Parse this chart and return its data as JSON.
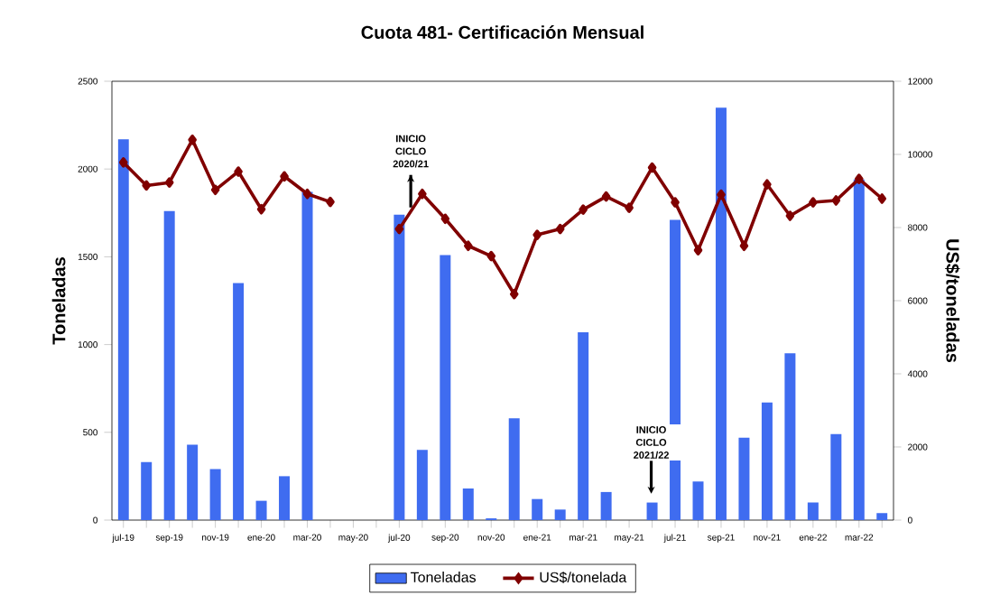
{
  "chart_data": {
    "type": "bar",
    "title": "Cuota 481-  Certificación Mensual",
    "ylabel": "Toneladas",
    "y2label": "US$/toneladas",
    "categories": [
      "jul-19",
      null,
      "sep-19",
      null,
      "nov-19",
      null,
      "ene-20",
      null,
      "mar-20",
      null,
      "may-20",
      null,
      "jul-20",
      null,
      "sep-20",
      null,
      "nov-20",
      null,
      "ene-21",
      null,
      "mar-21",
      null,
      "may-21",
      null,
      "jul-21",
      null,
      "sep-21",
      null,
      "nov-21",
      null,
      "ene-22",
      null,
      "mar-22",
      null
    ],
    "series": [
      {
        "name": "Toneladas",
        "color": "#3f6cf0",
        "values": [
          2170,
          330,
          1760,
          430,
          290,
          1350,
          110,
          250,
          1870,
          null,
          null,
          null,
          1740,
          400,
          1510,
          180,
          10,
          580,
          120,
          60,
          1070,
          160,
          null,
          100,
          1710,
          220,
          2350,
          470,
          670,
          950,
          100,
          490,
          1940,
          40
        ]
      },
      {
        "name": "US$/tonelada",
        "type": "line",
        "axis": "y2",
        "color": "#800000",
        "marker": "diamond",
        "values": [
          9780,
          9150,
          9230,
          10400,
          9030,
          9530,
          8500,
          9400,
          8920,
          8700,
          null,
          null,
          7960,
          8920,
          8240,
          7500,
          7220,
          6180,
          7800,
          7960,
          8490,
          8850,
          8540,
          9640,
          8690,
          7380,
          8900,
          7500,
          9180,
          8320,
          8690,
          8740,
          9330,
          8790
        ]
      }
    ],
    "ylim": [
      0,
      2500
    ],
    "yticks": [
      0,
      500,
      1000,
      1500,
      2000,
      2500
    ],
    "y2lim": [
      0,
      12000
    ],
    "y2ticks": [
      0,
      2000,
      4000,
      6000,
      8000,
      10000,
      12000
    ],
    "legend": "bottom",
    "annotations": [
      {
        "text": "INICIO CICLO 2020/21",
        "x": "jul-20",
        "y": 1740
      },
      "INICIO CICLO 2021/22"
    ]
  }
}
